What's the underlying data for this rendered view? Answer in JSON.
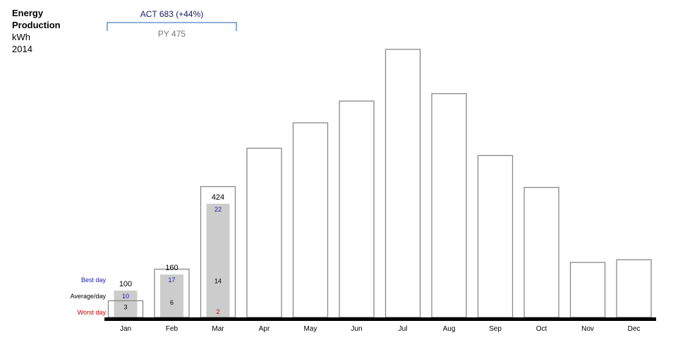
{
  "chart_data": {
    "type": "bar",
    "title_lines": [
      "Energy",
      "Production"
    ],
    "unit": "kWh",
    "year": "2014",
    "categories": [
      "Jan",
      "Feb",
      "Mar",
      "Apr",
      "May",
      "Jun",
      "Jul",
      "Aug",
      "Sep",
      "Oct",
      "Nov",
      "Dec"
    ],
    "series": [
      {
        "name": "PY",
        "values": [
          62,
          180,
          488,
          631,
          726,
          807,
          1000,
          835,
          604,
          485,
          205,
          215
        ]
      },
      {
        "name": "ACT",
        "values": [
          100,
          160,
          424,
          null,
          null,
          null,
          null,
          null,
          null,
          null,
          null,
          null
        ]
      }
    ],
    "ylim": [
      0,
      1000
    ],
    "best_day": [
      10,
      17,
      22,
      null,
      null,
      null,
      null,
      null,
      null,
      null,
      null,
      null
    ],
    "average_day": [
      3,
      6,
      14,
      null,
      null,
      null,
      null,
      null,
      null,
      null,
      null,
      null
    ],
    "worst_day": [
      "",
      "",
      2,
      null,
      null,
      null,
      null,
      null,
      null,
      null,
      null,
      null
    ],
    "row_labels": {
      "best": "Best day",
      "average": "Average/day",
      "worst": "Worst day"
    },
    "summary": {
      "act_label": "ACT 683 (+44%)",
      "py_label": "PY 475"
    },
    "colors": {
      "act_fill": "#cccccc",
      "py_stroke": "#888888",
      "baseline": "#000000",
      "best": "#1a1aa6",
      "worst": "#cc0000",
      "bracket": "#4a7fc1",
      "act_text": "#1a1a5e",
      "py_text": "#777777"
    }
  }
}
